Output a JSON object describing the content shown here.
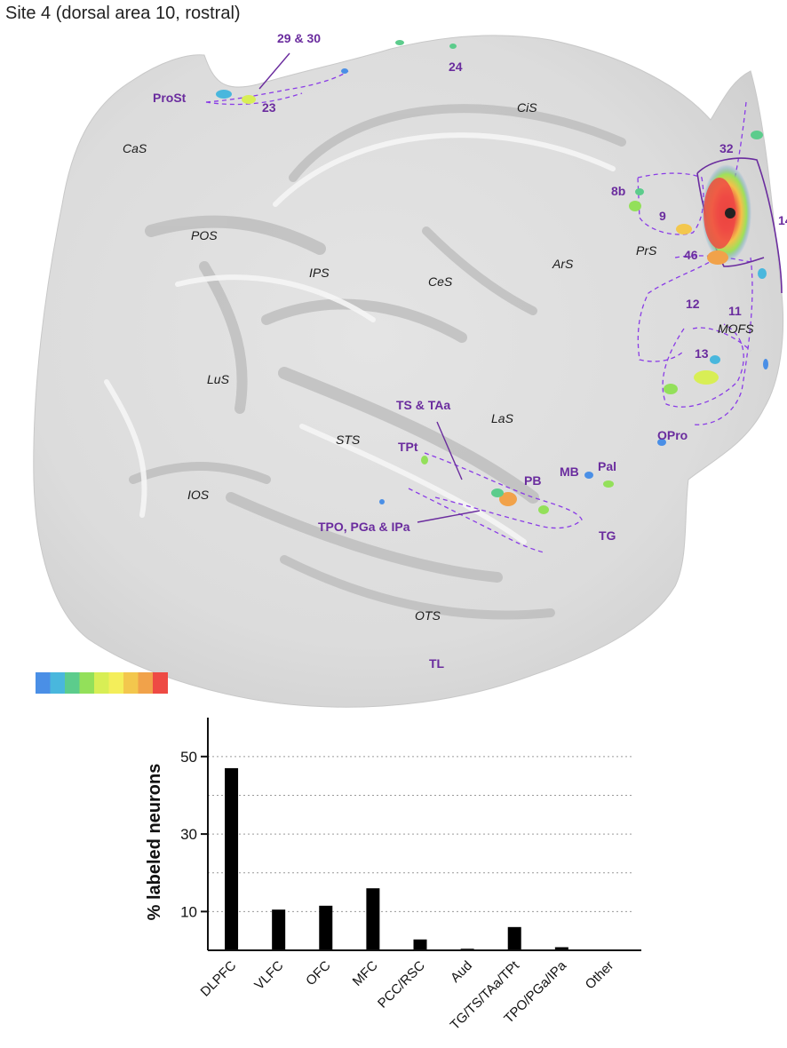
{
  "page": {
    "title": "Site 4 (dorsal area 10, rostral)"
  },
  "map": {
    "sulcus_labels": [
      "CaS",
      "POS",
      "IPS",
      "CeS",
      "ArS",
      "PrS",
      "LuS",
      "STS",
      "LaS",
      "IOS",
      "OTS",
      "CiS",
      "MOFS"
    ],
    "area_labels": [
      "29 & 30",
      "24",
      "ProSt",
      "23",
      "32",
      "14",
      "8b",
      "9",
      "46",
      "12",
      "11",
      "13",
      "OPro",
      "TS & TAa",
      "TPt",
      "PB",
      "MB",
      "Pal",
      "TG",
      "TPO, PGa & IPa",
      "TL"
    ],
    "colorbar": [
      "#4a8fe6",
      "#49b7dd",
      "#5ccc8c",
      "#93e05a",
      "#d8ee55",
      "#f4ee5a",
      "#f3c74d",
      "#f1a24a",
      "#ee4a44"
    ]
  },
  "chart_data": {
    "type": "bar",
    "categories": [
      "DLPFC",
      "VLFC",
      "OFC",
      "MFC",
      "PCC/RSC",
      "Aud",
      "TG/TS/TAa/TPt",
      "TPO/PGa/IPa",
      "Other"
    ],
    "values": [
      47,
      10.5,
      11.5,
      16,
      2.8,
      0.4,
      6,
      0.8,
      0
    ],
    "ylabel": "% labeled neurons",
    "yticks": [
      10,
      30,
      50
    ],
    "ylim": [
      0,
      55
    ],
    "bar_color": "#000000",
    "gridlines": [
      10,
      20,
      30,
      40,
      50
    ],
    "grid_style": "dotted"
  }
}
